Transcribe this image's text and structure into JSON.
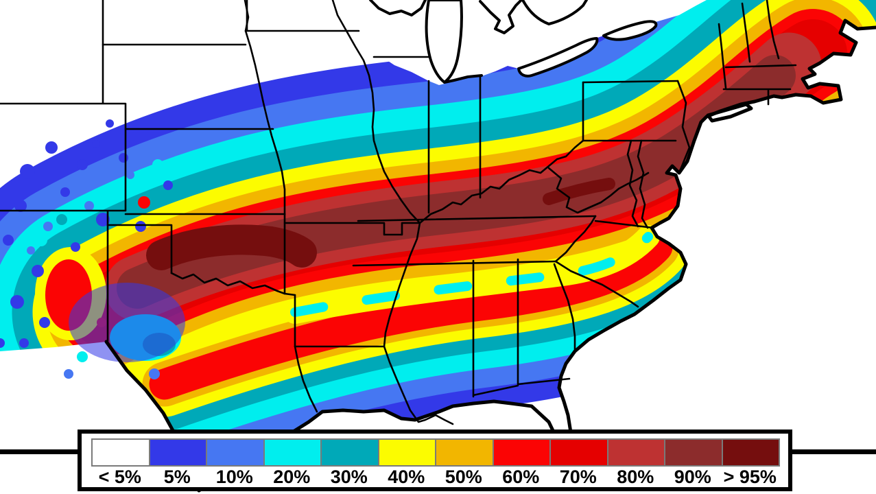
{
  "legend": {
    "entries": [
      {
        "label": "< 5%",
        "color": "#FFFFFF"
      },
      {
        "label": "5%",
        "color": "#3339E8"
      },
      {
        "label": "10%",
        "color": "#4677F2"
      },
      {
        "label": "20%",
        "color": "#00EEEE"
      },
      {
        "label": "30%",
        "color": "#00A9B8"
      },
      {
        "label": "40%",
        "color": "#FCFC00"
      },
      {
        "label": "50%",
        "color": "#F2B600"
      },
      {
        "label": "60%",
        "color": "#FB0404"
      },
      {
        "label": "70%",
        "color": "#E50000"
      },
      {
        "label": "80%",
        "color": "#BE3232"
      },
      {
        "label": "90%",
        "color": "#8C2C2C"
      },
      {
        "label": "> 95%",
        "color": "#750E0E"
      }
    ],
    "swatch_border_color": "#7a7a7a",
    "box_border_color": "#000000"
  },
  "map": {
    "background_color": "#FFFFFF",
    "boundary_color": "#000000"
  }
}
